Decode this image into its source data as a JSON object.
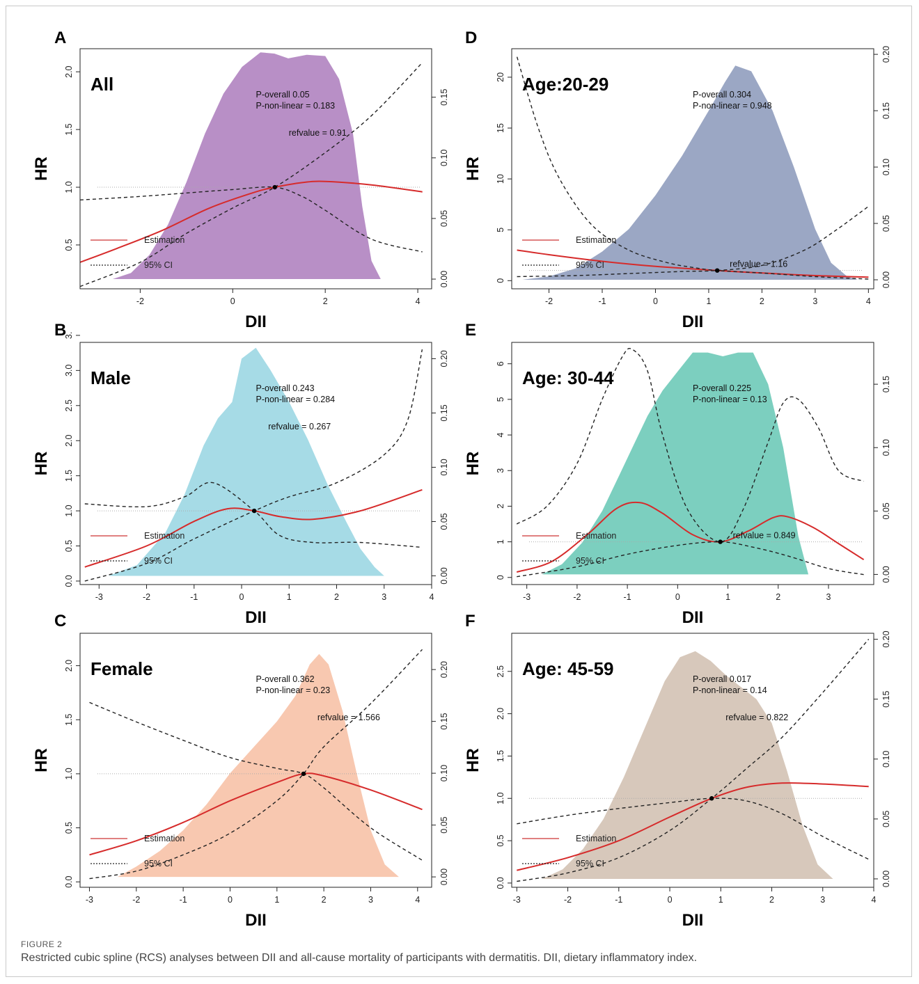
{
  "figure": {
    "label": "FIGURE 2",
    "caption": "Restricted cubic spline (RCS) analyses between DII and all-cause mortality of participants with dermatitis. DII, dietary inflammatory index."
  },
  "chart_data": [
    {
      "type": "line",
      "panel": "A",
      "group_title": "All",
      "fill_color": "#b88fc6",
      "xlabel": "DII",
      "ylabel": "HR",
      "xlim": [
        -3.3,
        4.3
      ],
      "ylim": [
        0.12,
        2.2
      ],
      "y2lim": [
        -0.008,
        0.19
      ],
      "xticks": [
        "-2",
        "0",
        "2",
        "4"
      ],
      "yticks": [
        "0.5",
        "1.0",
        "1.5",
        "2.0"
      ],
      "y2ticks": [
        "0.00",
        "0.05",
        "0.10",
        "0.15"
      ],
      "annotations": [
        "P-overall 0.05",
        "P-non-linear = 0.183",
        "refvalue = 0.91"
      ],
      "legend": [
        "Estimation",
        "95% CI"
      ],
      "refvalue": 0.91,
      "density": {
        "x": [
          -2.6,
          -2.2,
          -1.8,
          -1.4,
          -1.0,
          -0.6,
          -0.2,
          0.2,
          0.6,
          0.9,
          1.2,
          1.6,
          2.0,
          2.3,
          2.6,
          2.8,
          3.0,
          3.2
        ],
        "y": [
          0.0,
          0.005,
          0.02,
          0.045,
          0.08,
          0.12,
          0.153,
          0.175,
          0.187,
          0.186,
          0.182,
          0.185,
          0.184,
          0.165,
          0.12,
          0.06,
          0.015,
          0.0
        ]
      },
      "series": [
        {
          "name": "Estimation",
          "x": [
            -3.3,
            -2.5,
            -1.5,
            -0.5,
            0.5,
            0.91,
            1.5,
            2.0,
            3.0,
            4.1
          ],
          "y": [
            0.35,
            0.47,
            0.63,
            0.82,
            0.96,
            1.0,
            1.04,
            1.05,
            1.02,
            0.96
          ]
        },
        {
          "x": [
            -3.3,
            -2.0,
            -1.0,
            0.0,
            0.91,
            1.5,
            2.0,
            3.0,
            4.1
          ],
          "y": [
            0.89,
            0.92,
            0.95,
            0.98,
            1.0,
            0.92,
            0.8,
            0.55,
            0.44
          ]
        },
        {
          "x": [
            -3.3,
            -2.0,
            -1.0,
            0.0,
            0.91,
            2.0,
            3.0,
            4.1
          ],
          "y": [
            0.14,
            0.35,
            0.6,
            0.82,
            1.0,
            1.3,
            1.62,
            2.08
          ]
        }
      ]
    },
    {
      "type": "line",
      "panel": "B",
      "group_title": "Male",
      "fill_color": "#a6dbe6",
      "xlabel": "DII",
      "ylabel": "HR",
      "xlim": [
        -3.4,
        4.0
      ],
      "ylim": [
        -0.05,
        3.4
      ],
      "y2lim": [
        -0.008,
        0.215
      ],
      "xticks": [
        "-3",
        "-2",
        "-1",
        "0",
        "1",
        "2",
        "3",
        "4"
      ],
      "yticks": [
        "0.0",
        "0.5",
        "1.0",
        "1.5",
        "2.0",
        "2.5",
        "3.0",
        "3."
      ],
      "y2ticks": [
        "0.00",
        "0.05",
        "0.10",
        "0.15",
        "0.20"
      ],
      "annotations": [
        "P-overall 0.243",
        "P-non-linear = 0.284",
        "refvalue = 0.267"
      ],
      "legend": [
        "Estimation",
        "95% CI"
      ],
      "refvalue": 0.267,
      "density": {
        "x": [
          -2.8,
          -2.2,
          -1.6,
          -1.2,
          -0.8,
          -0.5,
          -0.2,
          0.0,
          0.3,
          0.6,
          1.0,
          1.4,
          1.8,
          2.2,
          2.5,
          2.8,
          3.0
        ],
        "y": [
          0.0,
          0.01,
          0.04,
          0.075,
          0.12,
          0.145,
          0.16,
          0.2,
          0.21,
          0.19,
          0.16,
          0.125,
          0.085,
          0.05,
          0.025,
          0.008,
          0.0
        ]
      },
      "series": [
        {
          "name": "Estimation",
          "x": [
            -3.3,
            -2.0,
            -1.0,
            -0.3,
            0.267,
            0.8,
            1.5,
            2.5,
            3.8
          ],
          "y": [
            0.2,
            0.5,
            0.85,
            1.03,
            1.0,
            0.92,
            0.88,
            1.0,
            1.3
          ]
        },
        {
          "x": [
            -3.3,
            -2.0,
            -1.2,
            -0.6,
            0.267,
            0.8,
            1.5,
            2.5,
            3.8
          ],
          "y": [
            1.1,
            1.06,
            1.2,
            1.4,
            1.0,
            0.65,
            0.55,
            0.55,
            0.48
          ]
        },
        {
          "x": [
            -3.3,
            -2.0,
            -1.0,
            0.267,
            1.0,
            2.0,
            3.0,
            3.5,
            3.8
          ],
          "y": [
            0.0,
            0.25,
            0.6,
            1.0,
            1.2,
            1.4,
            1.8,
            2.3,
            3.3
          ]
        }
      ]
    },
    {
      "type": "line",
      "panel": "C",
      "group_title": "Female",
      "fill_color": "#f8c8b0",
      "xlabel": "DII",
      "ylabel": "HR",
      "xlim": [
        -3.2,
        4.3
      ],
      "ylim": [
        -0.05,
        2.3
      ],
      "y2lim": [
        -0.01,
        0.235
      ],
      "xticks": [
        "-3",
        "-2",
        "-1",
        "0",
        "1",
        "2",
        "3",
        "4"
      ],
      "yticks": [
        "0.0",
        "0.5",
        "1.0",
        "1.5",
        "2.0"
      ],
      "y2ticks": [
        "0.00",
        "0.05",
        "0.10",
        "0.15",
        "0.20"
      ],
      "annotations": [
        "P-overall 0.362",
        "P-non-linear = 0.23",
        "refvalue = 1.566"
      ],
      "legend": [
        "Estimation",
        "95% CI"
      ],
      "refvalue": 1.566,
      "density": {
        "x": [
          -2.4,
          -2.0,
          -1.5,
          -1.0,
          -0.5,
          0.0,
          0.5,
          1.0,
          1.4,
          1.7,
          1.9,
          2.1,
          2.4,
          2.7,
          3.0,
          3.3,
          3.6
        ],
        "y": [
          0.0,
          0.01,
          0.025,
          0.045,
          0.07,
          0.1,
          0.125,
          0.15,
          0.175,
          0.205,
          0.215,
          0.205,
          0.16,
          0.1,
          0.045,
          0.012,
          0.0
        ]
      },
      "series": [
        {
          "name": "Estimation",
          "x": [
            -3.0,
            -2.0,
            -1.0,
            0.0,
            1.0,
            1.566,
            2.0,
            3.0,
            4.1
          ],
          "y": [
            0.25,
            0.38,
            0.55,
            0.75,
            0.92,
            1.0,
            0.98,
            0.85,
            0.67
          ]
        },
        {
          "x": [
            -3.0,
            -2.0,
            -1.0,
            0.0,
            1.0,
            1.566,
            2.0,
            3.0,
            4.1
          ],
          "y": [
            1.66,
            1.48,
            1.31,
            1.15,
            1.05,
            1.0,
            0.87,
            0.5,
            0.2
          ]
        },
        {
          "x": [
            -3.0,
            -2.0,
            -1.0,
            0.0,
            1.0,
            1.566,
            2.0,
            3.0,
            4.1
          ],
          "y": [
            0.03,
            0.1,
            0.25,
            0.45,
            0.75,
            1.0,
            1.25,
            1.65,
            2.15
          ]
        }
      ]
    },
    {
      "type": "line",
      "panel": "D",
      "group_title": "Age:20-29",
      "fill_color": "#9ba7c4",
      "xlabel": "DII",
      "ylabel": "HR",
      "xlim": [
        -2.7,
        4.1
      ],
      "ylim": [
        -0.8,
        22.8
      ],
      "y2lim": [
        -0.008,
        0.205
      ],
      "xticks": [
        "-2",
        "-1",
        "0",
        "1",
        "2",
        "3",
        "4"
      ],
      "yticks": [
        "0",
        "5",
        "10",
        "15",
        "20"
      ],
      "y2ticks": [
        "0.00",
        "0.05",
        "0.10",
        "0.15",
        "0.20"
      ],
      "annotations": [
        "P-overall 0.304",
        "P-non-linear = 0.948",
        "refvalue = 1.16"
      ],
      "legend": [
        "Estimation",
        "95% CI"
      ],
      "refvalue": 1.16,
      "density": {
        "x": [
          -2.5,
          -2.0,
          -1.5,
          -1.0,
          -0.5,
          0.0,
          0.5,
          1.0,
          1.3,
          1.5,
          1.8,
          2.2,
          2.6,
          3.0,
          3.3,
          3.6,
          3.8
        ],
        "y": [
          0.0,
          0.003,
          0.01,
          0.025,
          0.045,
          0.075,
          0.11,
          0.15,
          0.175,
          0.19,
          0.185,
          0.15,
          0.1,
          0.045,
          0.015,
          0.003,
          0.0
        ]
      },
      "series": [
        {
          "name": "Estimation",
          "x": [
            -2.6,
            -2.0,
            -1.0,
            0.0,
            1.16,
            2.0,
            3.0,
            4.0
          ],
          "y": [
            3.0,
            2.55,
            1.9,
            1.4,
            1.0,
            0.75,
            0.5,
            0.35
          ]
        },
        {
          "x": [
            -2.6,
            -2.2,
            -1.8,
            -1.2,
            -0.5,
            0.2,
            0.7,
            1.16,
            2.0,
            3.0,
            4.0
          ],
          "y": [
            22.0,
            15.0,
            10.0,
            5.5,
            3.0,
            1.8,
            1.3,
            1.0,
            0.75,
            0.4,
            0.15
          ]
        },
        {
          "x": [
            -2.6,
            -1.5,
            -0.5,
            0.5,
            1.16,
            2.0,
            2.8,
            3.4,
            4.0
          ],
          "y": [
            0.4,
            0.5,
            0.7,
            0.9,
            1.0,
            1.5,
            3.0,
            5.0,
            7.3
          ]
        }
      ]
    },
    {
      "type": "line",
      "panel": "E",
      "group_title": "Age: 30-44",
      "fill_color": "#7ccfbf",
      "xlabel": "DII",
      "ylabel": "HR",
      "xlim": [
        -3.3,
        3.9
      ],
      "ylim": [
        -0.2,
        6.6
      ],
      "y2lim": [
        -0.008,
        0.183
      ],
      "xticks": [
        "-3",
        "-2",
        "-1",
        "0",
        "1",
        "2",
        "3"
      ],
      "yticks": [
        "0",
        "1",
        "2",
        "3",
        "4",
        "5",
        "6"
      ],
      "y2ticks": [
        "0.00",
        "0.05",
        "0.10",
        "0.15"
      ],
      "annotations": [
        "P-overall 0.225",
        "P-non-linear = 0.13",
        "refvalue = 0.849"
      ],
      "legend": [
        "Estimation",
        "95% CI"
      ],
      "refvalue": 0.849,
      "density": {
        "x": [
          -2.7,
          -2.3,
          -1.9,
          -1.5,
          -1.2,
          -0.9,
          -0.6,
          -0.3,
          0.0,
          0.3,
          0.6,
          0.9,
          1.2,
          1.5,
          1.8,
          2.1,
          2.4,
          2.6
        ],
        "y": [
          0.0,
          0.008,
          0.025,
          0.05,
          0.075,
          0.1,
          0.125,
          0.145,
          0.16,
          0.175,
          0.175,
          0.172,
          0.175,
          0.175,
          0.15,
          0.1,
          0.03,
          0.0
        ]
      },
      "series": [
        {
          "name": "Estimation",
          "x": [
            -3.2,
            -2.5,
            -1.8,
            -1.2,
            -0.75,
            -0.3,
            0.3,
            0.849,
            1.4,
            1.9,
            2.2,
            2.7,
            3.2,
            3.7
          ],
          "y": [
            0.15,
            0.45,
            1.2,
            1.95,
            2.1,
            1.8,
            1.2,
            1.0,
            1.3,
            1.68,
            1.7,
            1.4,
            0.95,
            0.5
          ]
        },
        {
          "x": [
            -3.2,
            -2.6,
            -2.0,
            -1.5,
            -1.1,
            -0.9,
            -0.6,
            -0.3,
            0.2,
            0.849,
            1.3,
            1.8,
            2.1,
            2.4,
            2.8,
            3.2,
            3.7
          ],
          "y": [
            1.5,
            2.0,
            3.2,
            5.0,
            6.2,
            6.4,
            5.8,
            4.0,
            1.9,
            1.0,
            1.9,
            3.8,
            4.9,
            5.0,
            4.2,
            3.0,
            2.7
          ]
        },
        {
          "x": [
            -3.2,
            -2.0,
            -1.0,
            0.0,
            0.849,
            1.5,
            2.2,
            3.0,
            3.7
          ],
          "y": [
            0.02,
            0.3,
            0.65,
            0.9,
            1.0,
            0.85,
            0.6,
            0.25,
            0.08
          ]
        }
      ]
    },
    {
      "type": "line",
      "panel": "F",
      "group_title": "Age: 45-59",
      "fill_color": "#d7c8bb",
      "xlabel": "DII",
      "ylabel": "HR",
      "xlim": [
        -3.1,
        4.0
      ],
      "ylim": [
        -0.05,
        2.95
      ],
      "y2lim": [
        -0.007,
        0.205
      ],
      "xticks": [
        "-3",
        "-2",
        "-1",
        "0",
        "1",
        "2",
        "3",
        "4"
      ],
      "yticks": [
        "0.0",
        "0.5",
        "1.0",
        "1.5",
        "2.0",
        "2.5"
      ],
      "y2ticks": [
        "0.00",
        "0.05",
        "0.10",
        "0.15",
        "0.20"
      ],
      "annotations": [
        "P-overall 0.017",
        "P-non-linear = 0.14",
        "refvalue = 0.822"
      ],
      "legend": [
        "Estimation",
        "95% CI"
      ],
      "refvalue": 0.822,
      "density": {
        "x": [
          -2.5,
          -2.1,
          -1.7,
          -1.3,
          -0.9,
          -0.5,
          -0.1,
          0.2,
          0.5,
          0.8,
          1.1,
          1.4,
          1.7,
          2.0,
          2.3,
          2.6,
          2.9,
          3.2
        ],
        "y": [
          0.0,
          0.008,
          0.025,
          0.05,
          0.085,
          0.125,
          0.165,
          0.185,
          0.19,
          0.182,
          0.17,
          0.16,
          0.15,
          0.13,
          0.09,
          0.045,
          0.012,
          0.0
        ]
      },
      "series": [
        {
          "name": "Estimation",
          "x": [
            -3.0,
            -2.0,
            -1.0,
            0.0,
            0.822,
            1.5,
            2.2,
            3.0,
            3.9
          ],
          "y": [
            0.15,
            0.3,
            0.5,
            0.78,
            1.0,
            1.13,
            1.18,
            1.17,
            1.14
          ]
        },
        {
          "x": [
            -3.0,
            -2.0,
            -1.0,
            0.0,
            0.822,
            1.5,
            2.2,
            3.0,
            3.9
          ],
          "y": [
            0.7,
            0.8,
            0.88,
            0.95,
            1.0,
            0.97,
            0.82,
            0.55,
            0.28
          ]
        },
        {
          "x": [
            -3.0,
            -2.0,
            -1.0,
            0.0,
            0.822,
            1.5,
            2.2,
            3.0,
            3.9
          ],
          "y": [
            0.02,
            0.12,
            0.3,
            0.62,
            1.0,
            1.35,
            1.72,
            2.25,
            2.88
          ]
        }
      ]
    }
  ]
}
